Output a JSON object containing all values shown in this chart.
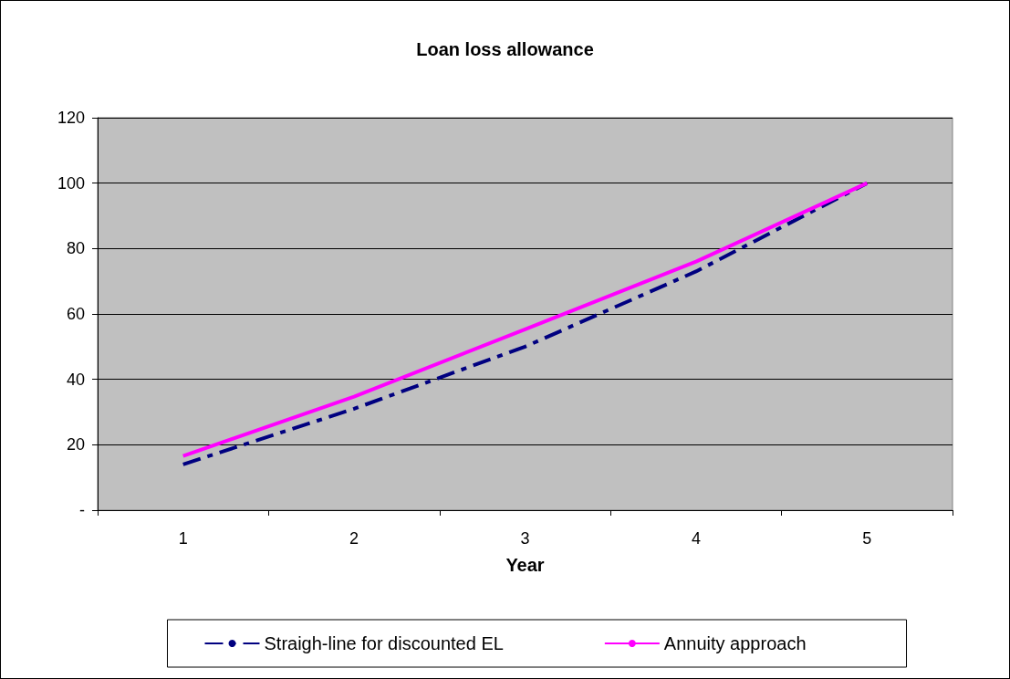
{
  "chart_data": {
    "type": "line",
    "title": "Loan loss allowance",
    "xlabel": "Year",
    "categories": [
      "1",
      "2",
      "3",
      "4",
      "5"
    ],
    "series": [
      {
        "name": "Straigh-line for discounted EL",
        "color": "#000080",
        "line_style": "dashed",
        "values": [
          14,
          31,
          50,
          73,
          100
        ]
      },
      {
        "name": "Annuity approach",
        "color": "#ff00ff",
        "line_style": "solid",
        "values": [
          16.6,
          34.7,
          55.3,
          76,
          100
        ]
      }
    ],
    "ylim": [
      0,
      120
    ],
    "yticks": [
      {
        "value": 0,
        "label": "-"
      },
      20,
      40,
      60,
      80,
      100,
      120
    ],
    "grid": "y",
    "legend": "bottom",
    "marker": "none"
  }
}
